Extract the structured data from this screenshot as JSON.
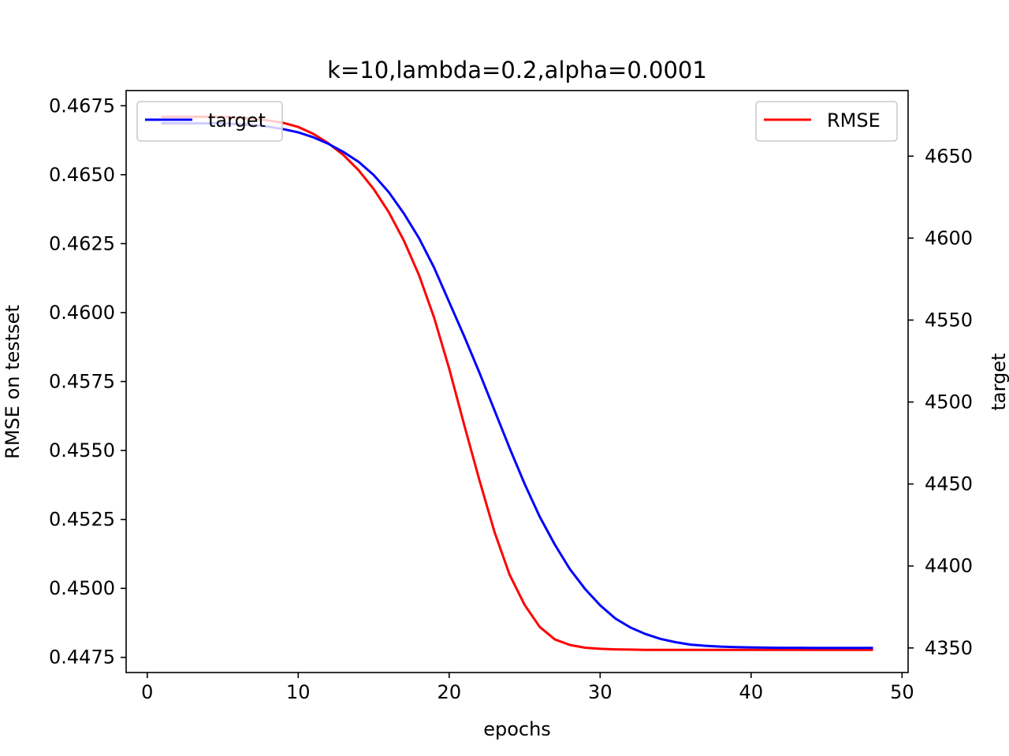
{
  "chart_data": {
    "type": "line",
    "title": "k=10,lambda=0.2,alpha=0.0001",
    "xlabel": "epochs",
    "ylabel_left": "RMSE on testset",
    "ylabel_right": "target",
    "xlim": [
      -1.4,
      50.4
    ],
    "ylim_left": [
      0.44695,
      0.46805
    ],
    "ylim_right": [
      4335,
      4690
    ],
    "x_ticks": [
      0,
      10,
      20,
      30,
      40,
      50
    ],
    "x_tick_labels": [
      "0",
      "10",
      "20",
      "30",
      "40",
      "50"
    ],
    "y_left_ticks": [
      0.4475,
      0.45,
      0.4525,
      0.455,
      0.4575,
      0.46,
      0.4625,
      0.465,
      0.4675
    ],
    "y_left_tick_labels": [
      "0.4475",
      "0.4500",
      "0.4525",
      "0.4550",
      "0.4575",
      "0.4600",
      "0.4625",
      "0.4650",
      "0.4675"
    ],
    "y_right_ticks": [
      4350,
      4400,
      4450,
      4500,
      4550,
      4600,
      4650
    ],
    "y_right_tick_labels": [
      "4350",
      "4400",
      "4450",
      "4500",
      "4550",
      "4600",
      "4650"
    ],
    "x": [
      1,
      2,
      3,
      4,
      5,
      6,
      7,
      8,
      9,
      10,
      11,
      12,
      13,
      14,
      15,
      16,
      17,
      18,
      19,
      20,
      21,
      22,
      23,
      24,
      25,
      26,
      27,
      28,
      29,
      30,
      31,
      32,
      33,
      34,
      35,
      36,
      37,
      38,
      39,
      40,
      41,
      42,
      43,
      44,
      45,
      46,
      47,
      48
    ],
    "series": [
      {
        "name": "RMSE",
        "axis": "left",
        "color": "#ff0000",
        "values": [
          0.4671,
          0.4671,
          0.4671,
          0.4671,
          0.4671,
          0.46707,
          0.46703,
          0.46697,
          0.46688,
          0.46673,
          0.46648,
          0.46614,
          0.46571,
          0.46516,
          0.46448,
          0.46364,
          0.46261,
          0.46136,
          0.45982,
          0.45797,
          0.45592,
          0.45393,
          0.45205,
          0.4505,
          0.4494,
          0.4486,
          0.44815,
          0.44795,
          0.44785,
          0.44781,
          0.44779,
          0.44778,
          0.44777,
          0.44777,
          0.44777,
          0.44777,
          0.44777,
          0.44777,
          0.44777,
          0.44777,
          0.44777,
          0.44777,
          0.44777,
          0.44777,
          0.44777,
          0.44777,
          0.44777,
          0.44777
        ]
      },
      {
        "name": "target",
        "axis": "right",
        "color": "#0000ff",
        "values": [
          4670,
          4670,
          4670,
          4670,
          4670,
          4669.5,
          4669,
          4668,
          4666.5,
          4664.5,
          4661.5,
          4657.5,
          4652.5,
          4646.5,
          4638.5,
          4628,
          4615,
          4600,
          4582,
          4561,
          4540,
          4518,
          4495,
          4472,
          4450,
          4430,
          4413,
          4398,
          4386,
          4376,
          4368,
          4362.5,
          4358.5,
          4355.5,
          4353.5,
          4352,
          4351.3,
          4350.8,
          4350.5,
          4350.3,
          4350.2,
          4350.1,
          4350.1,
          4350,
          4350,
          4350,
          4350,
          4350
        ]
      }
    ],
    "legend_left": {
      "label": "target",
      "color": "#0000ff",
      "placement": "upper left"
    },
    "legend_right": {
      "label": "RMSE",
      "color": "#ff0000",
      "placement": "upper right"
    },
    "grid": false
  }
}
